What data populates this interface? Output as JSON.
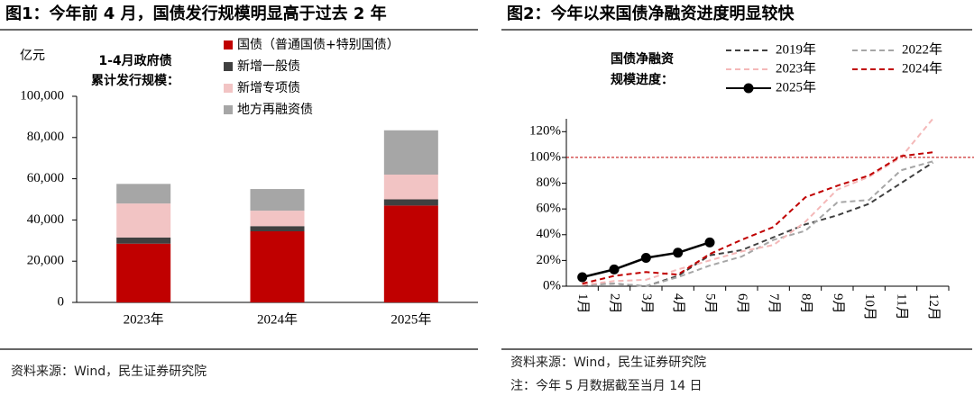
{
  "chart_data": [
    {
      "type": "bar",
      "stacked": true,
      "title": "图1：今年前 4 月，国债发行规模明显高于过去 2 年",
      "ylabel": "亿元",
      "annotation": [
        "1-4月政府债",
        "累计发行规模："
      ],
      "source": "资料来源：Wind，民生证券研究院",
      "categories": [
        "2023年",
        "2024年",
        "2025年"
      ],
      "series": [
        {
          "name": "国债（普通国债+特别国债）",
          "color": "#c00000",
          "values": [
            28500,
            34500,
            47000
          ]
        },
        {
          "name": "新增一般债",
          "color": "#404040",
          "values": [
            3000,
            2500,
            3000
          ]
        },
        {
          "name": "新增专项债",
          "color": "#f2c4c4",
          "values": [
            16500,
            7500,
            12000
          ]
        },
        {
          "name": "地方再融资债",
          "color": "#a6a6a6",
          "values": [
            9500,
            10500,
            21500
          ]
        }
      ],
      "ylim": [
        0,
        100000
      ],
      "yticks": [
        0,
        {
          "value": 20000,
          "label": "20,000"
        },
        {
          "value": 40000,
          "label": "40,000"
        },
        {
          "value": 60000,
          "label": "60,000"
        },
        {
          "value": 80000,
          "label": "80,000"
        },
        {
          "value": 100000,
          "label": "100,000"
        }
      ]
    },
    {
      "type": "line",
      "title": "图2：今年以来国债净融资进度明显较快",
      "annotation": [
        "国债净融资",
        "规模进度："
      ],
      "source": "资料来源：Wind，民生证券研究院",
      "note": "注：今年 5 月数据截至当月 14 日",
      "categories": [
        "1月",
        "2月",
        "3月",
        "4月",
        "5月",
        "6月",
        "7月",
        "8月",
        "9月",
        "10月",
        "11月",
        "12月"
      ],
      "series": [
        {
          "name": "2019年",
          "color": "#404040",
          "dashed": true,
          "values": [
            1,
            2,
            0,
            8,
            24,
            28,
            38,
            48,
            55,
            64,
            80,
            96
          ]
        },
        {
          "name": "2022年",
          "color": "#a6a6a6",
          "dashed": true,
          "values": [
            1,
            2,
            0,
            7,
            16,
            23,
            36,
            43,
            65,
            67,
            90,
            97
          ]
        },
        {
          "name": "2023年",
          "color": "#f4b8b8",
          "dashed": true,
          "values": [
            1,
            4,
            5,
            13,
            20,
            27,
            32,
            50,
            75,
            85,
            100,
            130
          ]
        },
        {
          "name": "2024年",
          "color": "#c00000",
          "dashed": true,
          "values": [
            2,
            8,
            11,
            9,
            25,
            36,
            46,
            69,
            78,
            86,
            101,
            104
          ]
        },
        {
          "name": "2025年",
          "color": "#000000",
          "dashed": false,
          "markers": true,
          "values": [
            7,
            13,
            22,
            26,
            34,
            null,
            null,
            null,
            null,
            null,
            null,
            null
          ]
        }
      ],
      "hline": 100,
      "ylim": [
        0,
        130
      ],
      "yticks": [
        {
          "value": 0,
          "label": "0%"
        },
        {
          "value": 20,
          "label": "20%"
        },
        {
          "value": 40,
          "label": "40%"
        },
        {
          "value": 60,
          "label": "60%"
        },
        {
          "value": 80,
          "label": "80%"
        },
        {
          "value": 100,
          "label": "100%"
        },
        {
          "value": 120,
          "label": "120%"
        }
      ]
    }
  ]
}
